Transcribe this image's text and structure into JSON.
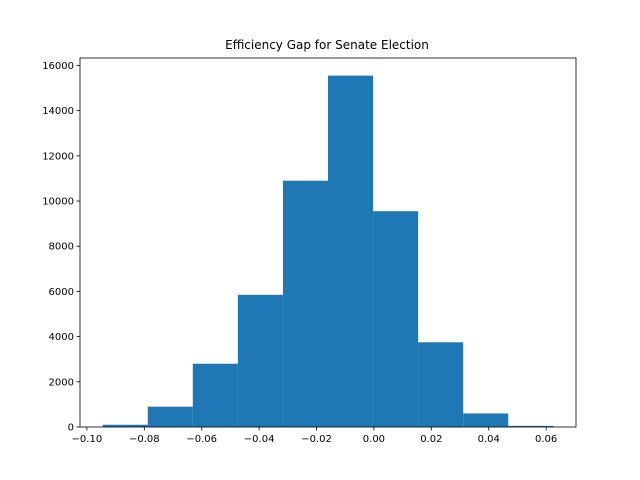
{
  "chart_data": {
    "type": "bar",
    "title": "Efficiency Gap for Senate Election",
    "xlabel": "",
    "ylabel": "",
    "bar_color": "#1f77b4",
    "bins": [
      {
        "x0": -0.0945,
        "x1": -0.0788,
        "count": 100
      },
      {
        "x0": -0.0788,
        "x1": -0.0631,
        "count": 900
      },
      {
        "x0": -0.0631,
        "x1": -0.0474,
        "count": 2800
      },
      {
        "x0": -0.0474,
        "x1": -0.0317,
        "count": 5850
      },
      {
        "x0": -0.0317,
        "x1": -0.016,
        "count": 10900
      },
      {
        "x0": -0.016,
        "x1": -0.0003,
        "count": 15550
      },
      {
        "x0": -0.0003,
        "x1": 0.0154,
        "count": 9550
      },
      {
        "x0": 0.0154,
        "x1": 0.0311,
        "count": 3750
      },
      {
        "x0": 0.0311,
        "x1": 0.0468,
        "count": 600
      },
      {
        "x0": 0.0468,
        "x1": 0.0625,
        "count": 50
      }
    ],
    "xlim": [
      -0.1024,
      0.0704
    ],
    "ylim": [
      0,
      16330
    ],
    "x_ticks": [
      {
        "value": -0.1,
        "label": "−0.10"
      },
      {
        "value": -0.08,
        "label": "−0.08"
      },
      {
        "value": -0.06,
        "label": "−0.06"
      },
      {
        "value": -0.04,
        "label": "−0.04"
      },
      {
        "value": -0.02,
        "label": "−0.02"
      },
      {
        "value": 0.0,
        "label": "0.00"
      },
      {
        "value": 0.02,
        "label": "0.02"
      },
      {
        "value": 0.04,
        "label": "0.04"
      },
      {
        "value": 0.06,
        "label": "0.06"
      }
    ],
    "y_ticks": [
      {
        "value": 0,
        "label": "0"
      },
      {
        "value": 2000,
        "label": "2000"
      },
      {
        "value": 4000,
        "label": "4000"
      },
      {
        "value": 6000,
        "label": "6000"
      },
      {
        "value": 8000,
        "label": "8000"
      },
      {
        "value": 10000,
        "label": "10000"
      },
      {
        "value": 12000,
        "label": "12000"
      },
      {
        "value": 14000,
        "label": "14000"
      },
      {
        "value": 16000,
        "label": "16000"
      }
    ],
    "grid": false,
    "legend": "none"
  }
}
